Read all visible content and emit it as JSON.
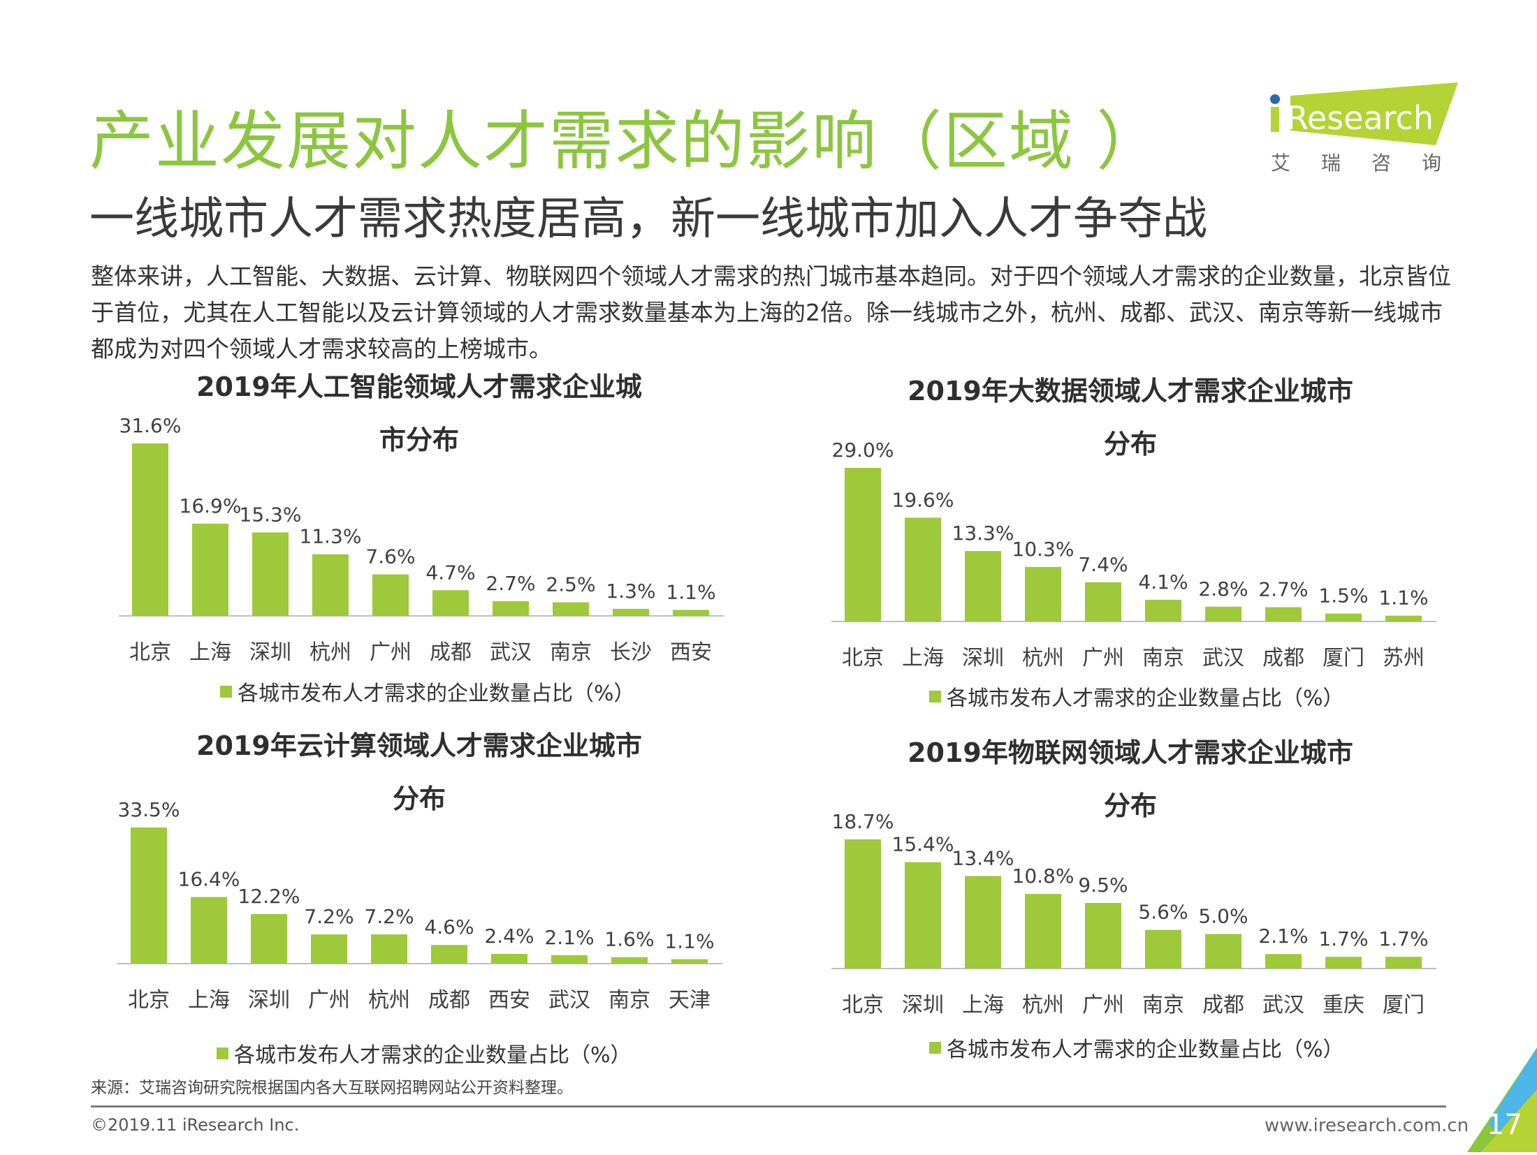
{
  "header": {
    "title": "产业发展对人才需求的影响（区域 ）",
    "subtitle": "一线城市人才需求热度居高，新一线城市加入人才争夺战",
    "paragraph": "整体来讲，人工智能、大数据、云计算、物联网四个领域人才需求的热门城市基本趋同。对于四个领域人才需求的企业数量，北京皆位于首位，尤其在人工智能以及云计算领域的人才需求数量基本为上海的2倍。除一线城市之外，杭州、成都、武汉、南京等新一线城市都成为对四个领域人才需求较高的上榜城市。"
  },
  "logo": {
    "text": "iResearch",
    "cn": "艾 瑞 咨 询",
    "colors": {
      "green": "#b5d334",
      "blue": "#2b67b5"
    }
  },
  "colors": {
    "title": "#8cc63f",
    "bar": "#9dc93a"
  },
  "chart_data": [
    {
      "type": "bar",
      "title_lines": [
        "2019年人工智能领域人才需求企业城",
        "市分布"
      ],
      "categories": [
        "北京",
        "上海",
        "深圳",
        "杭州",
        "广州",
        "成都",
        "武汉",
        "南京",
        "长沙",
        "西安"
      ],
      "values": [
        31.6,
        16.9,
        15.3,
        11.3,
        7.6,
        4.7,
        2.7,
        2.5,
        1.3,
        1.1
      ],
      "labels": [
        "31.6%",
        "16.9%",
        "15.3%",
        "11.3%",
        "7.6%",
        "4.7%",
        "2.7%",
        "2.5%",
        "1.3%",
        "1.1%"
      ],
      "legend": "各城市发布人才需求的企业数量占比（%）"
    },
    {
      "type": "bar",
      "title_lines": [
        "2019年大数据领域人才需求企业城市",
        "分布"
      ],
      "categories": [
        "北京",
        "上海",
        "深圳",
        "杭州",
        "广州",
        "南京",
        "武汉",
        "成都",
        "厦门",
        "苏州"
      ],
      "values": [
        29.0,
        19.6,
        13.3,
        10.3,
        7.4,
        4.1,
        2.8,
        2.7,
        1.5,
        1.1
      ],
      "labels": [
        "29.0%",
        "19.6%",
        "13.3%",
        "10.3%",
        "7.4%",
        "4.1%",
        "2.8%",
        "2.7%",
        "1.5%",
        "1.1%"
      ],
      "legend": "各城市发布人才需求的企业数量占比（%）"
    },
    {
      "type": "bar",
      "title_lines": [
        "2019年云计算领域人才需求企业城市",
        "分布"
      ],
      "categories": [
        "北京",
        "上海",
        "深圳",
        "广州",
        "杭州",
        "成都",
        "西安",
        "武汉",
        "南京",
        "天津"
      ],
      "values": [
        33.5,
        16.4,
        12.2,
        7.2,
        7.2,
        4.6,
        2.4,
        2.1,
        1.6,
        1.1
      ],
      "labels": [
        "33.5%",
        "16.4%",
        "12.2%",
        "7.2%",
        "7.2%",
        "4.6%",
        "2.4%",
        "2.1%",
        "1.6%",
        "1.1%"
      ],
      "legend": "各城市发布人才需求的企业数量占比（%）"
    },
    {
      "type": "bar",
      "title_lines": [
        "2019年物联网领域人才需求企业城市",
        "分布"
      ],
      "categories": [
        "北京",
        "深圳",
        "上海",
        "杭州",
        "广州",
        "南京",
        "成都",
        "武汉",
        "重庆",
        "厦门"
      ],
      "values": [
        18.7,
        15.4,
        13.4,
        10.8,
        9.5,
        5.6,
        5.0,
        2.1,
        1.7,
        1.7
      ],
      "labels": [
        "18.7%",
        "15.4%",
        "13.4%",
        "10.8%",
        "9.5%",
        "5.6%",
        "5.0%",
        "2.1%",
        "1.7%",
        "1.7%"
      ],
      "legend": "各城市发布人才需求的企业数量占比（%）"
    }
  ],
  "footer": {
    "source": "来源：艾瑞咨询研究院根据国内各大互联网招聘网站公开资料整理。",
    "copyright": "©2019.11 iResearch Inc.",
    "url": "www.iresearch.com.cn",
    "page": "17"
  }
}
